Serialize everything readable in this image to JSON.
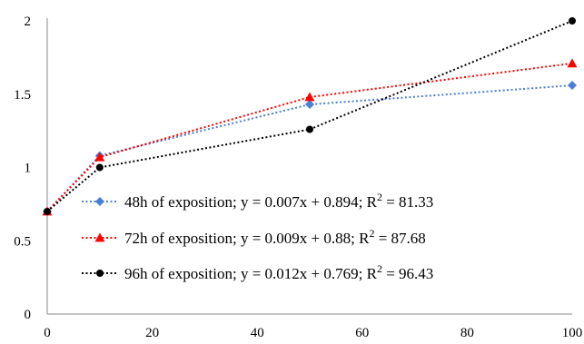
{
  "chart_data": {
    "type": "line",
    "title": "",
    "xlabel": "",
    "ylabel": "",
    "xlim": [
      0,
      100
    ],
    "ylim": [
      0,
      2
    ],
    "x_ticks": [
      "0",
      "20",
      "40",
      "60",
      "80",
      "100"
    ],
    "y_ticks": [
      "0",
      "0.5",
      "1",
      "1.5",
      "2"
    ],
    "grid": false,
    "legend_position": "center-left",
    "series": [
      {
        "name": "48h of exposition; y = 0.007x + 0.894; R",
        "r2_value": "81.33",
        "color": "#4a7fd4",
        "marker": "diamond",
        "x": [
          0,
          10,
          50,
          100
        ],
        "y": [
          0.7,
          1.08,
          1.43,
          1.56
        ]
      },
      {
        "name": "72h of exposition; y = 0.009x + 0.88; R",
        "r2_value": "87.68",
        "color": "#ff0000",
        "marker": "triangle",
        "x": [
          0,
          10,
          50,
          100
        ],
        "y": [
          0.7,
          1.07,
          1.48,
          1.71
        ]
      },
      {
        "name": "96h of exposition; y = 0.012x + 0.769; R",
        "r2_value": "96.43",
        "color": "#000000",
        "marker": "circle",
        "x": [
          0,
          10,
          50,
          100
        ],
        "y": [
          0.7,
          1.0,
          1.26,
          2.0
        ]
      }
    ],
    "r2_superscript": "2",
    "r2_equals": " = "
  }
}
